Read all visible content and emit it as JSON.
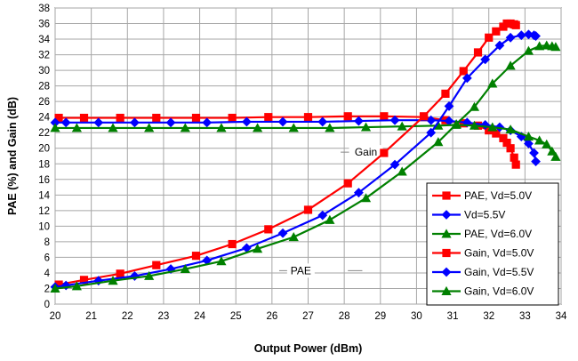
{
  "chart_data": {
    "type": "line",
    "xlabel": "Output Power (dBm)",
    "ylabel": "PAE (%) and Gain (dB)",
    "xlim": [
      20,
      34
    ],
    "ylim": [
      0,
      38
    ],
    "x_ticks": [
      20,
      21,
      22,
      23,
      24,
      25,
      26,
      27,
      28,
      29,
      30,
      31,
      32,
      33,
      34
    ],
    "y_ticks": [
      0,
      2,
      4,
      6,
      8,
      10,
      12,
      14,
      16,
      18,
      20,
      22,
      24,
      26,
      28,
      30,
      32,
      34,
      36,
      38
    ],
    "grid": true,
    "legend_position": "lower-right",
    "annotations": [
      {
        "text": "Gain",
        "x": 28.6,
        "y": 19.5,
        "leader_x": [
          27.9,
          29.2
        ]
      },
      {
        "text": "PAE",
        "x": 26.8,
        "y": 4.3,
        "leader_x": [
          26.2,
          26.6,
          28.1,
          28.5
        ]
      }
    ],
    "series": [
      {
        "name": "PAE, Vd=5.0V",
        "color": "#ff0000",
        "marker": "square",
        "x": [
          20.1,
          20.8,
          21.8,
          22.8,
          23.9,
          24.9,
          25.9,
          27.0,
          28.1,
          29.1,
          30.2,
          30.8,
          31.3,
          31.7,
          32.0,
          32.2,
          32.4,
          32.5,
          32.6,
          32.7,
          32.75
        ],
        "y": [
          2.5,
          3.1,
          3.9,
          5.0,
          6.2,
          7.7,
          9.6,
          12.1,
          15.5,
          19.4,
          24.1,
          27.0,
          29.9,
          32.3,
          34.2,
          35.0,
          35.6,
          36.0,
          36.0,
          35.9,
          35.8
        ]
      },
      {
        "name": "Vd=5.5V",
        "color": "#0000ff",
        "marker": "diamond",
        "x": [
          20.0,
          20.3,
          21.2,
          22.2,
          23.2,
          24.2,
          25.3,
          26.3,
          27.4,
          28.4,
          29.4,
          30.4,
          30.9,
          31.4,
          31.9,
          32.3,
          32.6,
          32.9,
          33.1,
          33.25,
          33.3
        ],
        "y": [
          2.2,
          2.4,
          3.0,
          3.6,
          4.5,
          5.6,
          7.2,
          9.1,
          11.4,
          14.3,
          17.9,
          22.0,
          25.4,
          29.0,
          31.4,
          33.2,
          34.2,
          34.5,
          34.6,
          34.5,
          34.4
        ]
      },
      {
        "name": "PAE, Vd=6.0V",
        "color": "#008000",
        "marker": "triangle",
        "x": [
          20.0,
          20.6,
          21.6,
          22.6,
          23.6,
          24.6,
          25.6,
          26.6,
          27.6,
          28.6,
          29.6,
          30.6,
          31.1,
          31.6,
          32.1,
          32.6,
          33.1,
          33.4,
          33.6,
          33.75,
          33.85
        ],
        "y": [
          2.0,
          2.3,
          3.0,
          3.6,
          4.5,
          5.5,
          7.1,
          8.6,
          10.8,
          13.6,
          17.0,
          20.8,
          23.1,
          25.3,
          28.3,
          30.6,
          32.5,
          33.1,
          33.2,
          33.1,
          33.0
        ]
      },
      {
        "name": "Gain, Vd=5.0V",
        "color": "#ff0000",
        "marker": "square",
        "x": [
          20.1,
          20.8,
          21.8,
          22.8,
          23.9,
          24.9,
          25.9,
          27.0,
          28.1,
          29.1,
          30.2,
          30.8,
          31.3,
          31.7,
          32.0,
          32.2,
          32.4,
          32.5,
          32.6,
          32.7,
          32.75
        ],
        "y": [
          23.9,
          23.9,
          23.9,
          23.9,
          23.9,
          23.9,
          24.0,
          24.0,
          24.1,
          24.1,
          24.0,
          23.6,
          23.2,
          22.9,
          22.3,
          21.9,
          21.3,
          20.7,
          20.0,
          18.8,
          17.9
        ]
      },
      {
        "name": "Gain, Vd=5.5V",
        "color": "#0000ff",
        "marker": "diamond",
        "x": [
          20.0,
          20.3,
          21.2,
          22.2,
          23.2,
          24.2,
          25.3,
          26.3,
          27.4,
          28.4,
          29.4,
          30.4,
          30.9,
          31.4,
          31.9,
          32.3,
          32.6,
          32.9,
          33.1,
          33.25,
          33.3
        ],
        "y": [
          23.3,
          23.3,
          23.3,
          23.3,
          23.3,
          23.3,
          23.4,
          23.4,
          23.4,
          23.5,
          23.6,
          23.6,
          23.5,
          23.3,
          23.0,
          22.7,
          22.3,
          21.5,
          20.6,
          19.4,
          18.3
        ]
      },
      {
        "name": "Gain, Vd=6.0V",
        "color": "#008000",
        "marker": "triangle",
        "x": [
          20.0,
          20.6,
          21.6,
          22.6,
          23.6,
          24.6,
          25.6,
          26.6,
          27.6,
          28.6,
          29.6,
          30.6,
          31.1,
          31.6,
          32.1,
          32.6,
          33.1,
          33.4,
          33.6,
          33.75,
          33.85
        ],
        "y": [
          22.6,
          22.6,
          22.6,
          22.6,
          22.6,
          22.6,
          22.6,
          22.6,
          22.6,
          22.7,
          22.8,
          22.9,
          23.0,
          22.9,
          22.7,
          22.4,
          21.5,
          21.0,
          20.5,
          19.6,
          18.9
        ]
      }
    ]
  }
}
